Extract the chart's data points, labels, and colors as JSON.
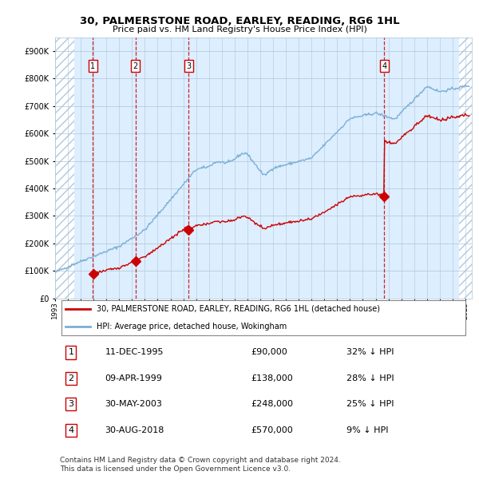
{
  "title": "30, PALMERSTONE ROAD, EARLEY, READING, RG6 1HL",
  "subtitle": "Price paid vs. HM Land Registry's House Price Index (HPI)",
  "footer": "Contains HM Land Registry data © Crown copyright and database right 2024.\nThis data is licensed under the Open Government Licence v3.0.",
  "legend_line1": "30, PALMERSTONE ROAD, EARLEY, READING, RG6 1HL (detached house)",
  "legend_line2": "HPI: Average price, detached house, Wokingham",
  "sales": [
    {
      "num": 1,
      "date": "11-DEC-1995",
      "price": 90000,
      "pct": "32%",
      "x_year": 1995.95
    },
    {
      "num": 2,
      "date": "09-APR-1999",
      "price": 138000,
      "pct": "28%",
      "x_year": 1999.27
    },
    {
      "num": 3,
      "date": "30-MAY-2003",
      "price": 248000,
      "pct": "25%",
      "x_year": 2003.41
    },
    {
      "num": 4,
      "date": "30-AUG-2018",
      "price": 570000,
      "pct": "9%",
      "x_year": 2018.66
    }
  ],
  "table_rows": [
    {
      "num": 1,
      "date": "11-DEC-1995",
      "price": "£90,000",
      "pct": "32% ↓ HPI"
    },
    {
      "num": 2,
      "date": "09-APR-1999",
      "price": "£138,000",
      "pct": "28% ↓ HPI"
    },
    {
      "num": 3,
      "date": "30-MAY-2003",
      "price": "£248,000",
      "pct": "25% ↓ HPI"
    },
    {
      "num": 4,
      "date": "30-AUG-2018",
      "price": "£570,000",
      "pct": "9% ↓ HPI"
    }
  ],
  "hpi_color": "#7bafd4",
  "price_color": "#cc0000",
  "dashed_line_color": "#cc0000",
  "background_color": "#ddeeff",
  "hatch_color": "#b0c8e0",
  "grid_color": "#adc5d8",
  "ylim": [
    0,
    950000
  ],
  "xlim_start": 1993.0,
  "xlim_end": 2025.5,
  "yticks": [
    0,
    100000,
    200000,
    300000,
    400000,
    500000,
    600000,
    700000,
    800000,
    900000
  ]
}
